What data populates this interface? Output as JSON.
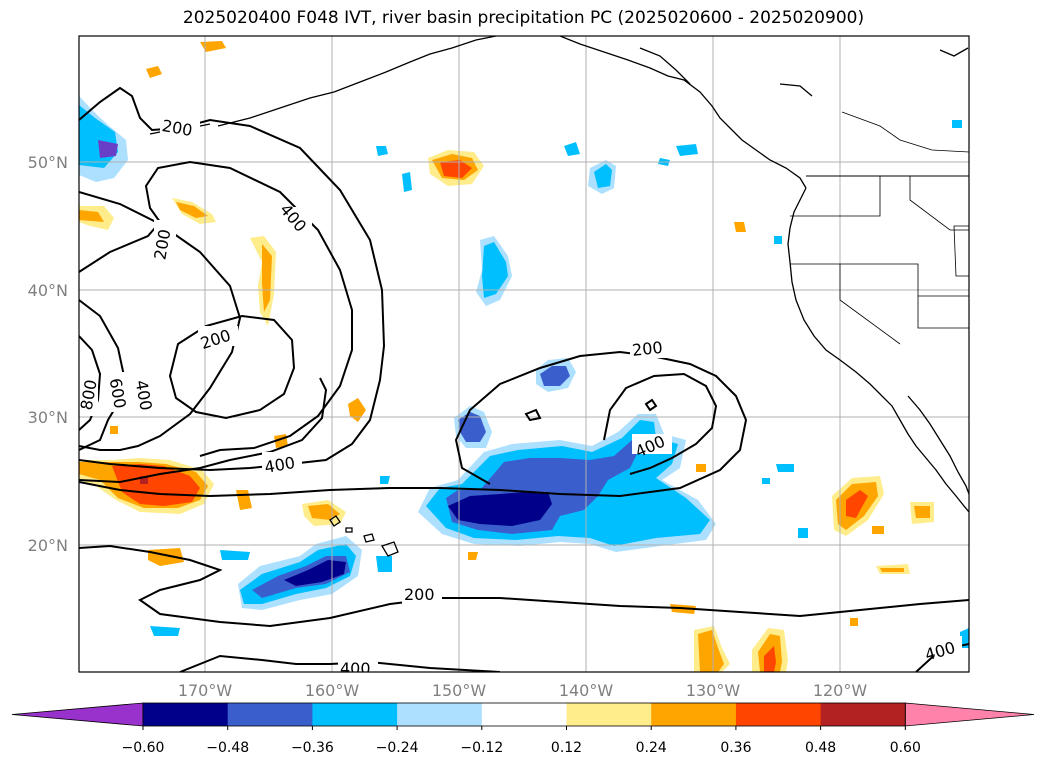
{
  "title": "2025020400 F048 IVT, river basin precipitation PC (2025020600 - 2025020900)",
  "lat_labels": [
    "50°N",
    "40°N",
    "30°N",
    "20°N"
  ],
  "lon_labels": [
    "170°W",
    "160°W",
    "150°W",
    "140°W",
    "130°W",
    "120°W"
  ],
  "contour_labels": [
    "200",
    "400",
    "200",
    "200",
    "800",
    "600",
    "400",
    "400",
    "200",
    "400",
    "200",
    "400",
    "400"
  ],
  "colorbar": {
    "ticks": [
      "−0.60",
      "−0.48",
      "−0.36",
      "−0.24",
      "−0.12",
      "0.12",
      "0.24",
      "0.36",
      "0.48",
      "0.60"
    ],
    "colors": [
      "#9932CC",
      "#00008B",
      "#3A5FCD",
      "#00BFFF",
      "#ADDFFF",
      "#FFFFFF",
      "#FFEC8B",
      "#FFA500",
      "#FF4500",
      "#B22222",
      "#FF82AB"
    ]
  },
  "colors": {
    "dark_purple": "#6A3FC8",
    "navy": "#00008B",
    "royal": "#3A5FCD",
    "sky": "#00BFFF",
    "light_blue": "#ADDFFF",
    "light_yellow": "#FFEC8B",
    "orange": "#FFA500",
    "red_orange": "#FF4500",
    "grid": "#b0b0b0"
  }
}
